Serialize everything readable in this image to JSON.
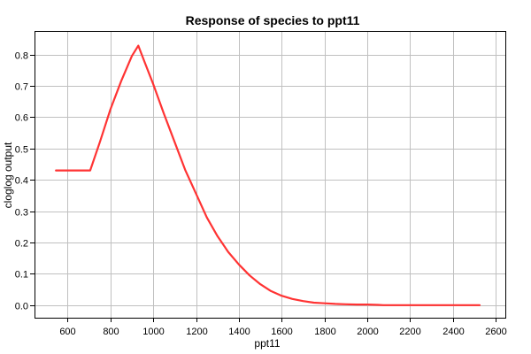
{
  "chart_data": {
    "type": "line",
    "title": "Response of species to ppt11",
    "xlabel": "ppt11",
    "ylabel": "cloglog output",
    "xlim": [
      445,
      2645
    ],
    "ylim": [
      -0.04,
      0.875
    ],
    "x_ticks": [
      600,
      800,
      1000,
      1200,
      1400,
      1600,
      1800,
      2000,
      2200,
      2400,
      2600
    ],
    "x_tick_labels": [
      "600",
      "800",
      "1000",
      "1200",
      "1400",
      "1600",
      "1800",
      "2000",
      "2200",
      "2400",
      "2600"
    ],
    "y_ticks": [
      0.0,
      0.1,
      0.2,
      0.3,
      0.4,
      0.5,
      0.6,
      0.7,
      0.8
    ],
    "y_tick_labels": [
      "0.0",
      "0.1",
      "0.2",
      "0.3",
      "0.4",
      "0.5",
      "0.6",
      "0.7",
      "0.8"
    ],
    "grid": true,
    "line_color": "#ff3333",
    "series": [
      {
        "x": [
          545,
          620,
          705,
          750,
          800,
          850,
          900,
          930,
          960,
          1000,
          1050,
          1100,
          1150,
          1200,
          1250,
          1300,
          1350,
          1400,
          1450,
          1500,
          1550,
          1600,
          1650,
          1700,
          1750,
          1800,
          1850,
          1900,
          1950,
          2000,
          2050,
          2075,
          2200,
          2300,
          2400,
          2525
        ],
        "y": [
          0.43,
          0.43,
          0.43,
          0.52,
          0.625,
          0.715,
          0.795,
          0.828,
          0.775,
          0.705,
          0.61,
          0.52,
          0.43,
          0.355,
          0.28,
          0.22,
          0.17,
          0.13,
          0.095,
          0.067,
          0.045,
          0.03,
          0.02,
          0.013,
          0.008,
          0.006,
          0.004,
          0.003,
          0.002,
          0.002,
          0.001,
          0.0,
          0.0,
          0.0,
          0.0,
          0.0
        ]
      }
    ]
  }
}
